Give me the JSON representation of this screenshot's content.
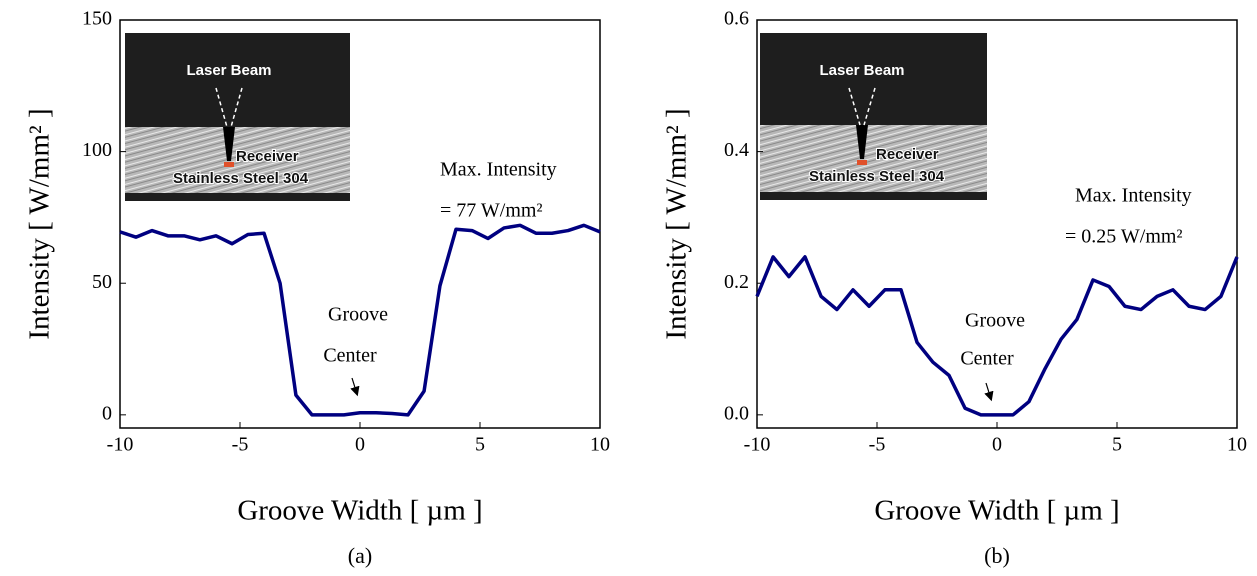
{
  "chart_data": [
    {
      "type": "line",
      "panel_label": "(a)",
      "x_label": "Groove Width [ µm ]",
      "y_label": "Intensity [ W/mm² ]",
      "xlim": [
        -10,
        10
      ],
      "ylim": [
        -5,
        150
      ],
      "xticks": [
        -10,
        -5,
        0,
        5,
        10
      ],
      "yticks": [
        0,
        50,
        100,
        150
      ],
      "x": [
        -10,
        -9.33,
        -8.67,
        -8,
        -7.33,
        -6.67,
        -6,
        -5.33,
        -4.67,
        -4,
        -3.33,
        -2.67,
        -2,
        -1.33,
        -0.67,
        0,
        0.67,
        1.33,
        2,
        2.67,
        3.33,
        4,
        4.67,
        5.33,
        6,
        6.67,
        7.33,
        8,
        8.67,
        9.33,
        10
      ],
      "series": [
        {
          "color": "#000080",
          "values": [
            69.5,
            67.5,
            70,
            68,
            68,
            66.5,
            68,
            65,
            68.5,
            69,
            50,
            7.5,
            0,
            0,
            0,
            0.8,
            0.8,
            0.5,
            0,
            9,
            49,
            70.5,
            70,
            67,
            71,
            72,
            69,
            69,
            70,
            72,
            69.5
          ]
        }
      ],
      "annotations": [
        "Max. Intensity",
        "= 77 W/mm²",
        "Groove",
        "Center"
      ],
      "inset_labels": [
        "Laser Beam",
        "Receiver",
        "Stainless Steel 304"
      ]
    },
    {
      "type": "line",
      "panel_label": "(b)",
      "x_label": "Groove Width [ µm ]",
      "y_label": "Intensity [ W/mm² ]",
      "xlim": [
        -10,
        10
      ],
      "ylim": [
        -0.02,
        0.6
      ],
      "xticks": [
        -10,
        -5,
        0,
        5,
        10
      ],
      "yticks": [
        {
          "value": 0,
          "label": "0.0"
        },
        0.2,
        0.4,
        0.6
      ],
      "x": [
        -10,
        -9.33,
        -8.67,
        -8,
        -7.33,
        -6.67,
        -6,
        -5.33,
        -4.67,
        -4,
        -3.33,
        -2.67,
        -2,
        -1.33,
        -0.67,
        0,
        0.67,
        1.33,
        2,
        2.67,
        3.33,
        4,
        4.67,
        5.33,
        6,
        6.67,
        7.33,
        8,
        8.67,
        9.33,
        10
      ],
      "series": [
        {
          "color": "#000080",
          "values": [
            0.18,
            0.24,
            0.21,
            0.24,
            0.18,
            0.16,
            0.19,
            0.165,
            0.19,
            0.19,
            0.11,
            0.08,
            0.06,
            0.01,
            0,
            0,
            0,
            0.02,
            0.07,
            0.115,
            0.145,
            0.205,
            0.195,
            0.165,
            0.16,
            0.18,
            0.19,
            0.165,
            0.16,
            0.18,
            0.24
          ]
        }
      ],
      "annotations": [
        "Max. Intensity",
        "= 0.25 W/mm²",
        "Groove",
        "Center"
      ],
      "inset_labels": [
        "Laser Beam",
        "Receiver",
        "Stainless Steel 304"
      ]
    }
  ]
}
